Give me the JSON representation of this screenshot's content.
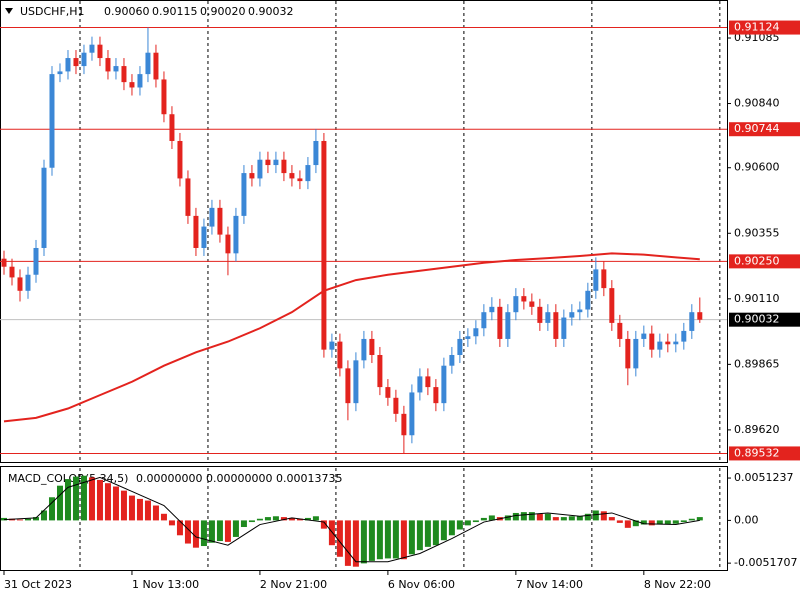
{
  "chart_data": [
    {
      "type": "candlestick",
      "title": "USDCHF,H1",
      "header_ohlc": [
        "0.90060",
        "0.90115",
        "0.90020",
        "0.90032"
      ],
      "up_color": "#3b87d6",
      "down_color": "#e3231e",
      "xlim": [
        -0.5,
        90.4
      ],
      "ylim": [
        0.895,
        0.91227
      ],
      "yticks": [
        0.91085,
        {
          "value": 0.9084,
          "label": "0.90840"
        },
        {
          "value": 0.906,
          "label": "0.90600"
        },
        0.90355,
        {
          "value": 0.9011,
          "label": "0.90110"
        },
        0.89865,
        {
          "value": 0.8962,
          "label": "0.89620"
        }
      ],
      "open": [
        0.9026,
        0.9023,
        0.9019,
        0.9014,
        0.902,
        0.903,
        0.906,
        0.9095,
        0.9096,
        0.9101,
        0.9098,
        0.9103,
        0.9106,
        0.9101,
        0.9096,
        0.9098,
        0.9092,
        0.909,
        0.9095,
        0.9103,
        0.9093,
        0.908,
        0.907,
        0.9056,
        0.9042,
        0.903,
        0.9038,
        0.9045,
        0.9035,
        0.9028,
        0.9042,
        0.9058,
        0.9056,
        0.9063,
        0.9061,
        0.9063,
        0.9058,
        0.9056,
        0.9055,
        0.9061,
        0.907,
        0.8992,
        0.8995,
        0.8985,
        0.8972,
        0.8988,
        0.8996,
        0.899,
        0.8978,
        0.8974,
        0.8968,
        0.896,
        0.8976,
        0.8982,
        0.8978,
        0.8972,
        0.8986,
        0.899,
        0.8996,
        0.8997,
        0.9,
        0.9006,
        0.9008,
        0.8996,
        0.9006,
        0.9012,
        0.901,
        0.9008,
        0.9002,
        0.9006,
        0.8996,
        0.9004,
        0.9006,
        0.9007,
        0.9014,
        0.9022,
        0.9015,
        0.9002,
        0.8996,
        0.8985,
        0.8996,
        0.8998,
        0.8992,
        0.8995,
        0.8994,
        0.8995,
        0.8999,
        0.9006
      ],
      "high": [
        0.9029,
        0.9026,
        0.9022,
        0.9023,
        0.9033,
        0.9063,
        0.9098,
        0.9099,
        0.9104,
        0.9104,
        0.9106,
        0.9109,
        0.9109,
        0.9104,
        0.9101,
        0.9101,
        0.9095,
        0.9098,
        0.91124,
        0.9106,
        0.9096,
        0.9083,
        0.9073,
        0.9059,
        0.9045,
        0.9041,
        0.9048,
        0.9048,
        0.9038,
        0.9045,
        0.9061,
        0.9061,
        0.9066,
        0.9066,
        0.9066,
        0.9066,
        0.9061,
        0.9059,
        0.9064,
        0.90744,
        0.9073,
        0.8998,
        0.8998,
        0.8988,
        0.8991,
        0.8999,
        0.8999,
        0.8993,
        0.8981,
        0.8977,
        0.8971,
        0.8979,
        0.8985,
        0.8985,
        0.8981,
        0.8989,
        0.8993,
        0.8999,
        0.9,
        0.9003,
        0.9009,
        0.90116,
        0.9011,
        0.9009,
        0.9015,
        0.9015,
        0.9013,
        0.9011,
        0.9009,
        0.9009,
        0.9007,
        0.9009,
        0.901,
        0.9017,
        0.90265,
        0.9025,
        0.9018,
        0.9005,
        0.8999,
        0.8999,
        0.9001,
        0.9001,
        0.8998,
        0.8998,
        0.8998,
        0.9002,
        0.9009,
        0.90115
      ],
      "low": [
        0.902,
        0.9016,
        0.901,
        0.9011,
        0.9017,
        0.9027,
        0.9057,
        0.9092,
        0.9093,
        0.9095,
        0.9095,
        0.91,
        0.9098,
        0.9093,
        0.9093,
        0.9089,
        0.9087,
        0.9087,
        0.9092,
        0.909,
        0.9077,
        0.9067,
        0.9053,
        0.9039,
        0.9027,
        0.9027,
        0.9035,
        0.9032,
        0.90198,
        0.9025,
        0.9039,
        0.9053,
        0.9053,
        0.9058,
        0.9058,
        0.9055,
        0.9053,
        0.9052,
        0.9052,
        0.9058,
        0.8989,
        0.8989,
        0.8982,
        0.89656,
        0.8969,
        0.8985,
        0.8987,
        0.8975,
        0.8971,
        0.8965,
        0.89532,
        0.8957,
        0.8973,
        0.8975,
        0.8969,
        0.8969,
        0.8983,
        0.8987,
        0.8993,
        0.8994,
        0.8997,
        0.9003,
        0.8993,
        0.8993,
        0.9003,
        0.9007,
        0.9005,
        0.8999,
        0.8999,
        0.8993,
        0.8993,
        0.9001,
        0.9003,
        0.9004,
        0.9011,
        0.9012,
        0.8999,
        0.8993,
        0.89787,
        0.8982,
        0.8993,
        0.8989,
        0.8989,
        0.8991,
        0.8991,
        0.8992,
        0.8996,
        0.9002
      ],
      "close": [
        0.9023,
        0.9019,
        0.9014,
        0.902,
        0.903,
        0.906,
        0.9095,
        0.9096,
        0.9101,
        0.9098,
        0.9103,
        0.9106,
        0.9101,
        0.9096,
        0.9098,
        0.9092,
        0.909,
        0.9095,
        0.9103,
        0.9093,
        0.908,
        0.907,
        0.9056,
        0.9042,
        0.903,
        0.9038,
        0.9045,
        0.9035,
        0.9028,
        0.9042,
        0.9058,
        0.9056,
        0.9063,
        0.9061,
        0.9063,
        0.9058,
        0.9056,
        0.9055,
        0.9061,
        0.907,
        0.8992,
        0.8995,
        0.8985,
        0.8972,
        0.8988,
        0.8996,
        0.899,
        0.8978,
        0.8974,
        0.8968,
        0.896,
        0.8976,
        0.8982,
        0.8978,
        0.8972,
        0.8986,
        0.899,
        0.8996,
        0.8997,
        0.9,
        0.9006,
        0.9008,
        0.8996,
        0.9006,
        0.9012,
        0.901,
        0.9008,
        0.9002,
        0.9006,
        0.8996,
        0.9004,
        0.9006,
        0.9007,
        0.9014,
        0.9022,
        0.9015,
        0.9002,
        0.8996,
        0.8985,
        0.8996,
        0.8998,
        0.8992,
        0.8995,
        0.8994,
        0.8995,
        0.8999,
        0.9006,
        0.90032
      ],
      "ma": {
        "color": "#e3231e",
        "x": [
          0,
          4,
          8,
          12,
          16,
          20,
          24,
          28,
          32,
          36,
          40,
          44,
          48,
          52,
          56,
          60,
          64,
          68,
          72,
          76,
          80,
          84,
          87
        ],
        "values": [
          0.89652,
          0.89665,
          0.897,
          0.8975,
          0.898,
          0.8986,
          0.8991,
          0.8995,
          0.9,
          0.9006,
          0.9014,
          0.9018,
          0.902,
          0.90215,
          0.9023,
          0.90245,
          0.90255,
          0.90262,
          0.9027,
          0.9028,
          0.90275,
          0.90265,
          0.90258
        ]
      },
      "levels": [
        {
          "value": 0.91124
        },
        {
          "value": 0.90744
        },
        {
          "value": 0.9025,
          "label": "0.90250"
        },
        {
          "value": 0.89532
        }
      ],
      "level_color": "#e3231e",
      "last_price": 0.90032
    },
    {
      "type": "macd",
      "title": "MACD_COLOR(5,34,5)",
      "readout": "0.00000000 0.00000000 0.00013735",
      "up_color": "#1f8a1f",
      "down_color": "#e3231e",
      "signal_color": "#000000",
      "xlim": [
        -0.5,
        90.4
      ],
      "ylim": [
        -0.006,
        0.00646
      ],
      "yticks": [
        0.0051237,
        {
          "value": 0,
          "label": "0.00"
        },
        {
          "value": -0.0051707,
          "label": "-0.0051707"
        }
      ],
      "xticks": [
        {
          "value": 0,
          "label": "31 Oct 2023"
        },
        {
          "value": 16,
          "label": "1 Nov 13:00"
        },
        {
          "value": 32,
          "label": "2 Nov 21:00"
        },
        {
          "value": 48,
          "label": "6 Nov 06:00"
        },
        {
          "value": 64,
          "label": "7 Nov 14:00"
        },
        {
          "value": 80,
          "label": "8 Nov 22:00"
        }
      ],
      "values": [
        0.0003,
        0.0002,
        0.0001,
        0.0002,
        0.0004,
        0.0012,
        0.0028,
        0.0042,
        0.005,
        0.0053,
        0.0054,
        0.0052,
        0.0049,
        0.0045,
        0.0041,
        0.0036,
        0.003,
        0.0026,
        0.0024,
        0.0018,
        0.0008,
        -0.0006,
        -0.0018,
        -0.0028,
        -0.0033,
        -0.0031,
        -0.0027,
        -0.0025,
        -0.0026,
        -0.002,
        -0.0008,
        -0.0002,
        0.0002,
        0.0004,
        0.0005,
        0.0004,
        0.0003,
        0.0002,
        0.0003,
        0.0005,
        -0.001,
        -0.003,
        -0.0044,
        -0.0055,
        -0.0056,
        -0.0052,
        -0.0049,
        -0.0047,
        -0.0046,
        -0.0046,
        -0.0047,
        -0.0041,
        -0.0036,
        -0.0032,
        -0.003,
        -0.0024,
        -0.0018,
        -0.0011,
        -0.0006,
        -0.0002,
        0.0003,
        0.0006,
        0.0004,
        0.0006,
        0.0009,
        0.001,
        0.001,
        0.0008,
        0.0008,
        0.0004,
        0.0004,
        0.0005,
        0.0005,
        0.0008,
        0.0012,
        0.0011,
        0.0004,
        -0.0003,
        -0.0009,
        -0.0007,
        -0.0005,
        -0.0006,
        -0.0005,
        -0.0005,
        -0.0004,
        -0.0002,
        0.0002,
        0.0004
      ],
      "signal": {
        "x": [
          0,
          4,
          8,
          12,
          16,
          20,
          24,
          28,
          32,
          36,
          40,
          44,
          48,
          52,
          56,
          60,
          64,
          68,
          72,
          76,
          80,
          84,
          87
        ],
        "values": [
          0.0001,
          0.0003,
          0.004,
          0.0052,
          0.0035,
          0.0018,
          -0.002,
          -0.003,
          -0.0005,
          0.0003,
          -0.0002,
          -0.005,
          -0.005,
          -0.004,
          -0.0022,
          -0.0002,
          0.0006,
          0.0009,
          0.0005,
          0.0009,
          -0.0004,
          -0.0005,
          0
        ]
      }
    }
  ]
}
